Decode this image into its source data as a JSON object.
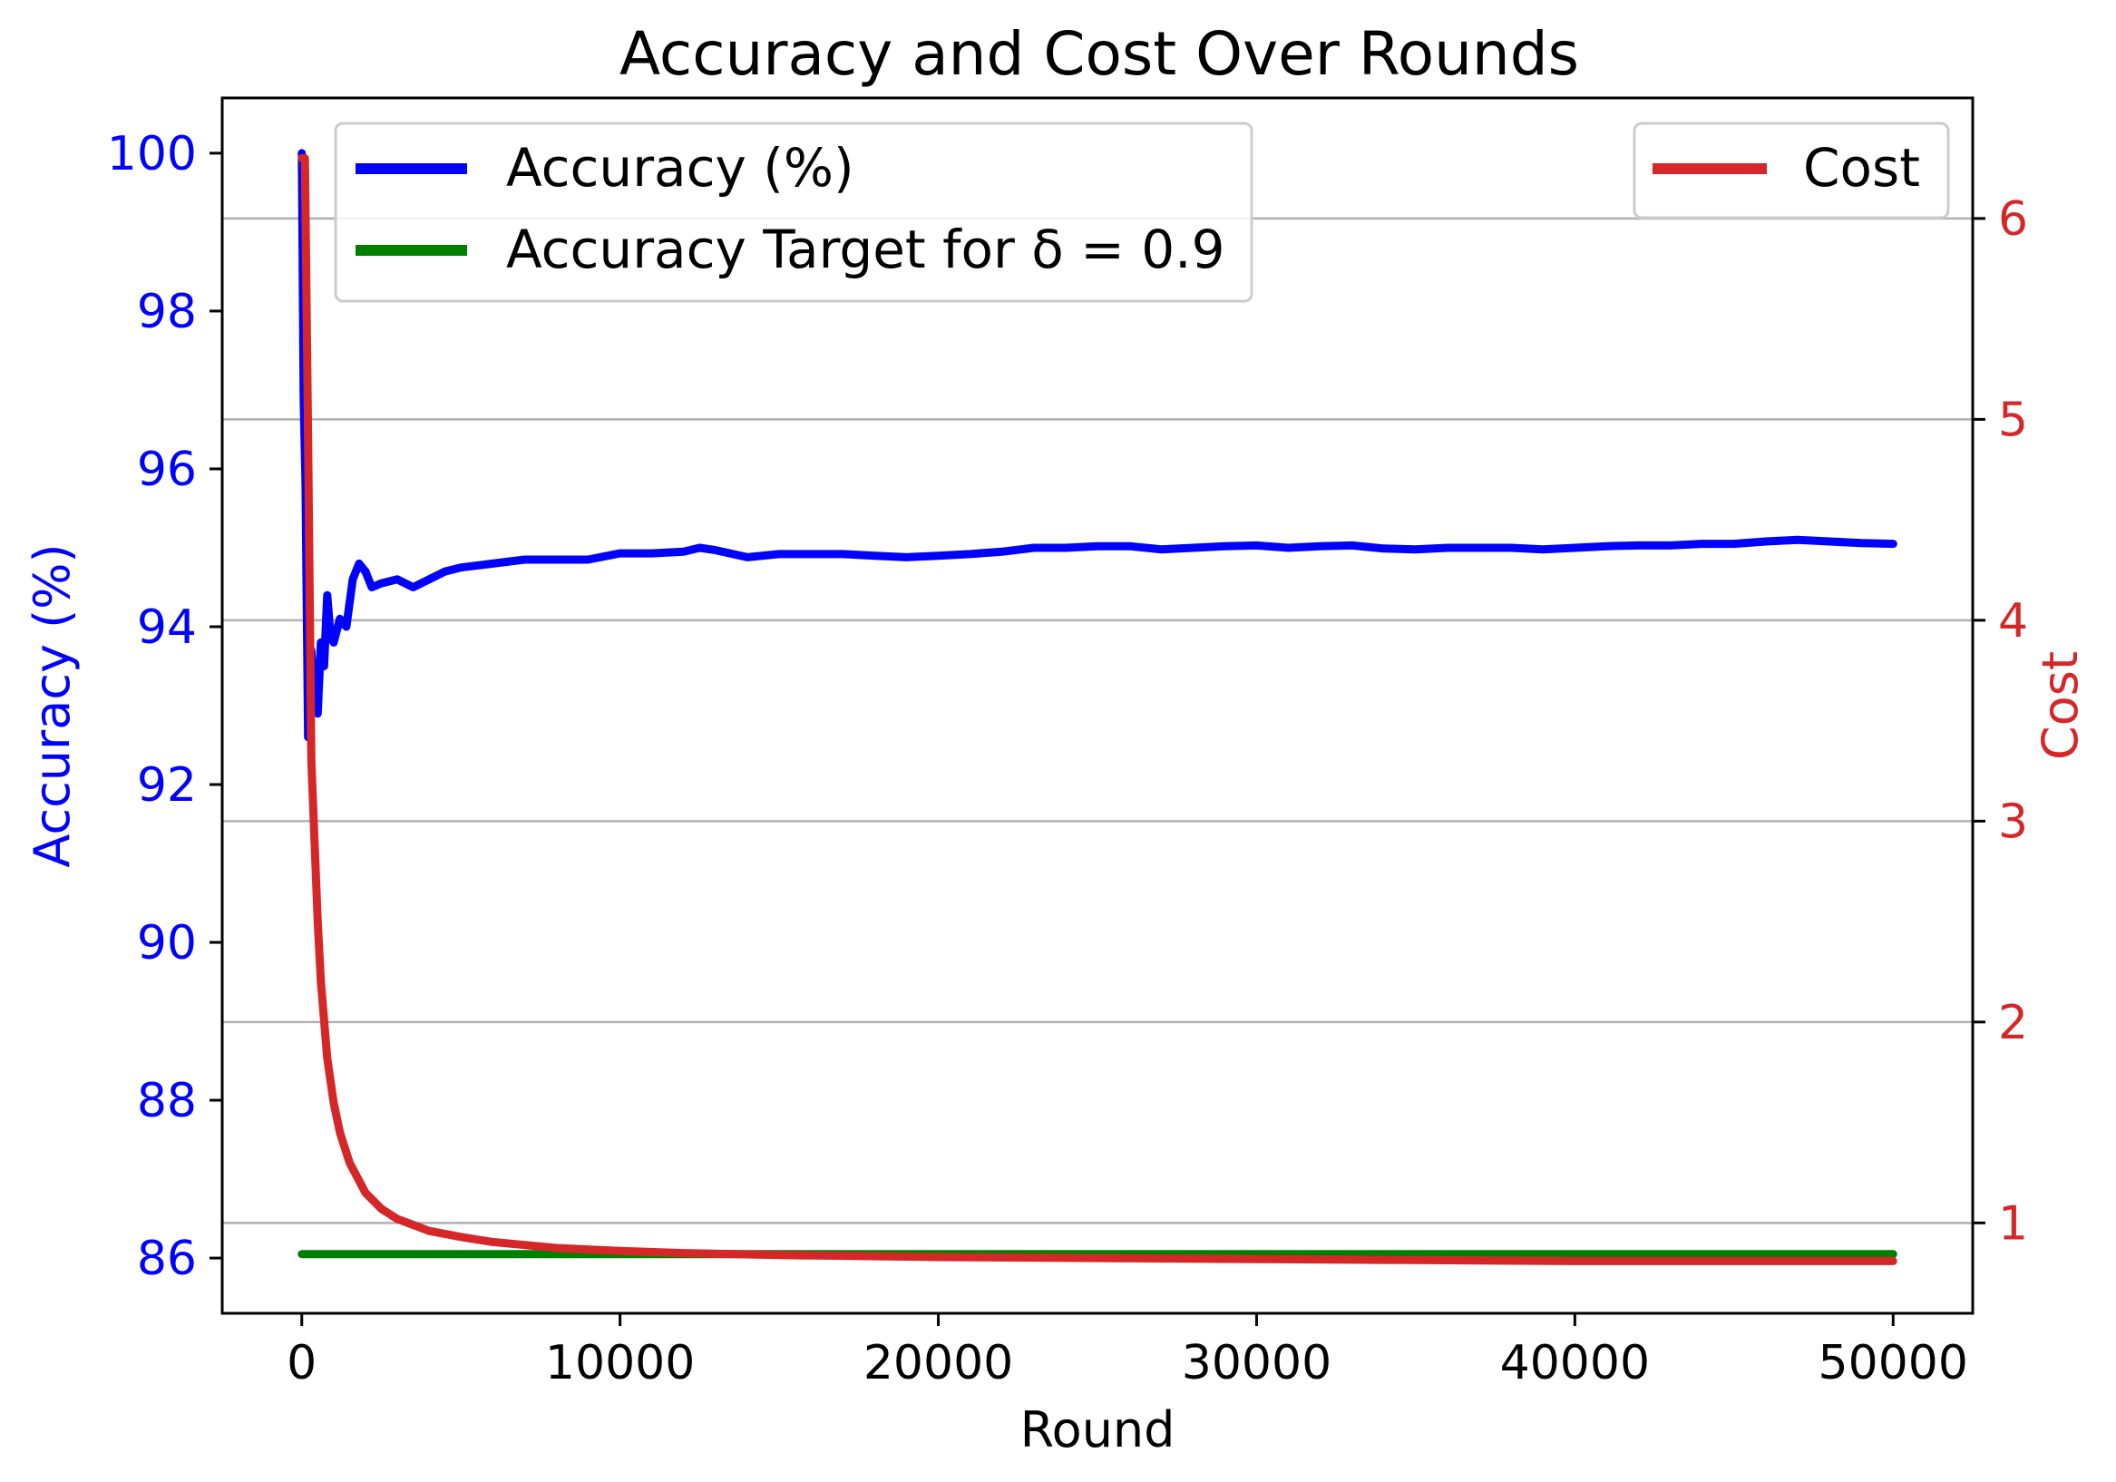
{
  "chart_data": {
    "type": "line",
    "title": "Accuracy and Cost Over Rounds",
    "xlabel": "Round",
    "ylabel_left": "Accuracy (%)",
    "ylabel_right": "Cost",
    "xlim": [
      -2500,
      52500
    ],
    "ylim_left": [
      85.3,
      100.7
    ],
    "ylim_right": [
      0.55,
      6.6
    ],
    "x_ticks": [
      0,
      10000,
      20000,
      30000,
      40000,
      50000
    ],
    "x_tick_labels": [
      "0",
      "10000",
      "20000",
      "30000",
      "40000",
      "50000"
    ],
    "y_left_ticks": [
      86,
      88,
      90,
      92,
      94,
      96,
      98,
      100
    ],
    "y_left_tick_labels": [
      "86",
      "88",
      "90",
      "92",
      "94",
      "96",
      "98",
      "100"
    ],
    "y_right_ticks": [
      1,
      2,
      3,
      4,
      5,
      6
    ],
    "y_right_tick_labels": [
      "1",
      "2",
      "3",
      "4",
      "5",
      "6"
    ],
    "grid": "horizontal, right axis",
    "legends": [
      {
        "placement": "top-left",
        "entries": [
          "Accuracy (%)",
          "Accuracy Target for δ = 0.9"
        ]
      },
      {
        "placement": "top-right",
        "entries": [
          "Cost"
        ]
      }
    ],
    "colors": {
      "accuracy": "#0000ff",
      "target": "#008000",
      "cost": "#d62728",
      "left_axis": "#0000ff",
      "right_axis": "#d62728",
      "grid": "#b0b0b0"
    },
    "series": [
      {
        "name": "Accuracy (%)",
        "axis": "left",
        "x": [
          1,
          60,
          120,
          200,
          300,
          400,
          500,
          600,
          700,
          800,
          900,
          1000,
          1200,
          1400,
          1600,
          1800,
          2000,
          2200,
          2500,
          3000,
          3500,
          4000,
          4500,
          5000,
          6000,
          7000,
          8000,
          9000,
          10000,
          11000,
          12000,
          12500,
          13000,
          14000,
          15000,
          16000,
          17000,
          18000,
          19000,
          20000,
          21000,
          22000,
          23000,
          24000,
          25000,
          26000,
          27000,
          28000,
          29000,
          30000,
          31000,
          32000,
          33000,
          34000,
          35000,
          36000,
          37000,
          38000,
          39000,
          40000,
          41000,
          42000,
          43000,
          44000,
          45000,
          46000,
          47000,
          48000,
          49000,
          50000
        ],
        "y": [
          100,
          96.9,
          95.8,
          92.6,
          93.7,
          93.0,
          92.9,
          93.8,
          93.5,
          94.4,
          93.9,
          93.8,
          94.1,
          94.0,
          94.6,
          94.8,
          94.7,
          94.5,
          94.55,
          94.6,
          94.5,
          94.6,
          94.7,
          94.75,
          94.8,
          94.85,
          94.85,
          94.85,
          94.93,
          94.93,
          94.95,
          95.0,
          94.97,
          94.88,
          94.92,
          94.92,
          94.92,
          94.9,
          94.88,
          94.9,
          94.92,
          94.95,
          95.0,
          95.0,
          95.02,
          95.02,
          94.98,
          95.0,
          95.02,
          95.03,
          95.0,
          95.02,
          95.03,
          94.99,
          94.98,
          95.0,
          95.0,
          95.0,
          94.98,
          95.0,
          95.02,
          95.03,
          95.03,
          95.05,
          95.05,
          95.08,
          95.1,
          95.08,
          95.06,
          95.05
        ]
      },
      {
        "name": "Accuracy Target for δ = 0.9",
        "axis": "left",
        "x": [
          1,
          50000
        ],
        "y": [
          86.05,
          86.05
        ]
      },
      {
        "name": "Cost",
        "axis": "right",
        "x": [
          1,
          100,
          200,
          300,
          400,
          500,
          600,
          800,
          1000,
          1200,
          1500,
          2000,
          2500,
          3000,
          3500,
          4000,
          5000,
          6000,
          7000,
          8000,
          10000,
          12000,
          15000,
          20000,
          25000,
          30000,
          35000,
          40000,
          45000,
          50000
        ],
        "y": [
          6.3,
          6.3,
          4.9,
          3.3,
          2.9,
          2.5,
          2.2,
          1.82,
          1.6,
          1.45,
          1.3,
          1.15,
          1.07,
          1.02,
          0.99,
          0.96,
          0.93,
          0.905,
          0.89,
          0.875,
          0.86,
          0.85,
          0.84,
          0.83,
          0.825,
          0.82,
          0.815,
          0.81,
          0.81,
          0.81
        ]
      }
    ]
  }
}
